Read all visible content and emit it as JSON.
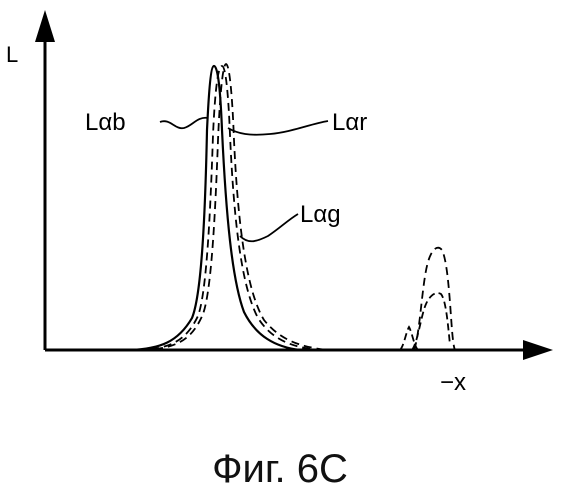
{
  "axes": {
    "y_label": "L",
    "x_label": "−x"
  },
  "curve_labels": {
    "b": "Lαb",
    "r": "Lαr",
    "g": "Lαg"
  },
  "caption": "Фиг. 6C",
  "colors": {
    "ink": "#000000",
    "background": "#ffffff"
  }
}
